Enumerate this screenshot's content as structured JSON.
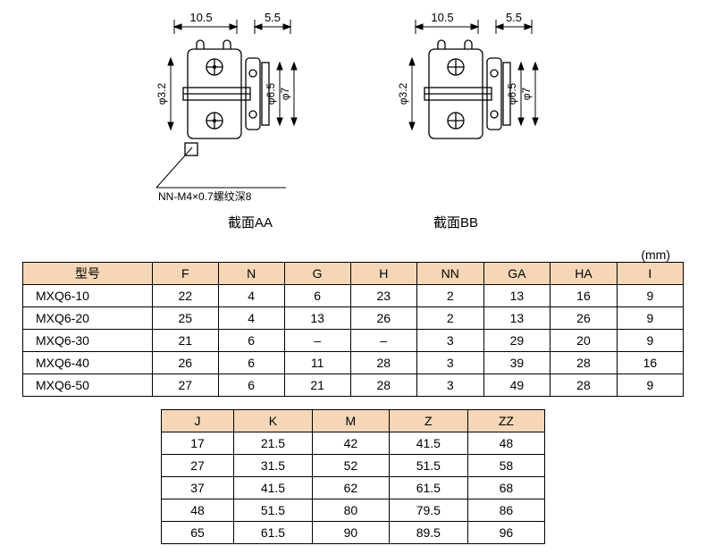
{
  "diagrams": {
    "dim_top_left": "10.5",
    "dim_top_right": "5.5",
    "dim_phi_small": "φ3.2",
    "dim_phi_mid": "φ6.5",
    "dim_phi_large": "φ7",
    "annotation": "NN-M4×0.7螺纹深8",
    "section_aa": "截面AA",
    "section_bb": "截面BB"
  },
  "unit_label": "(mm)",
  "table1": {
    "headers": [
      "型号",
      "F",
      "N",
      "G",
      "H",
      "NN",
      "GA",
      "HA",
      "I"
    ],
    "rows": [
      [
        "MXQ6-10",
        "22",
        "4",
        "6",
        "23",
        "2",
        "13",
        "16",
        "9"
      ],
      [
        "MXQ6-20",
        "25",
        "4",
        "13",
        "26",
        "2",
        "13",
        "26",
        "9"
      ],
      [
        "MXQ6-30",
        "21",
        "6",
        "–",
        "–",
        "3",
        "29",
        "20",
        "9"
      ],
      [
        "MXQ6-40",
        "26",
        "6",
        "11",
        "28",
        "3",
        "39",
        "28",
        "16"
      ],
      [
        "MXQ6-50",
        "27",
        "6",
        "21",
        "28",
        "3",
        "49",
        "28",
        "9"
      ]
    ],
    "col_widths": [
      "140",
      "66",
      "66",
      "66",
      "66",
      "66",
      "66",
      "66",
      "66"
    ]
  },
  "table2": {
    "headers": [
      "J",
      "K",
      "M",
      "Z",
      "ZZ"
    ],
    "rows": [
      [
        "17",
        "21.5",
        "42",
        "41.5",
        "48"
      ],
      [
        "27",
        "31.5",
        "52",
        "51.5",
        "58"
      ],
      [
        "37",
        "41.5",
        "62",
        "61.5",
        "68"
      ],
      [
        "48",
        "51.5",
        "80",
        "79.5",
        "86"
      ],
      [
        "65",
        "61.5",
        "90",
        "89.5",
        "96"
      ]
    ],
    "col_widths": [
      "80",
      "86",
      "86",
      "86",
      "86"
    ]
  },
  "colors": {
    "header_bg": "#f5d7b8",
    "border": "#000000",
    "text": "#000000"
  }
}
